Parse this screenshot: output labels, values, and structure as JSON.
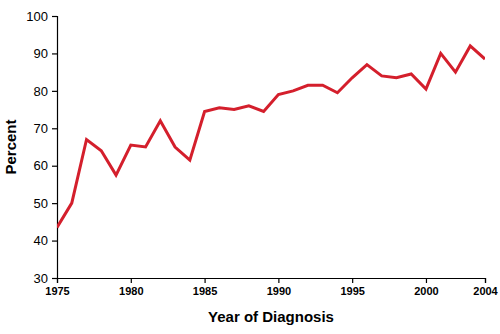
{
  "chart_data": {
    "type": "line",
    "x_label": "Year of Diagnosis",
    "y_label": "Percent",
    "x": [
      1975,
      1976,
      1977,
      1978,
      1979,
      1980,
      1981,
      1982,
      1983,
      1984,
      1985,
      1986,
      1987,
      1988,
      1989,
      1990,
      1991,
      1992,
      1993,
      1994,
      1995,
      1996,
      1997,
      1998,
      1999,
      2000,
      2001,
      2002,
      2003,
      2004
    ],
    "values": [
      43.5,
      50,
      67,
      64,
      57.5,
      65.5,
      65,
      72,
      65,
      61.5,
      74.5,
      75.5,
      75,
      76,
      74.5,
      79,
      80,
      81.5,
      81.5,
      79.5,
      83.5,
      87,
      84,
      83.5,
      84.5,
      80.5,
      90,
      85,
      92,
      88.5
    ],
    "color": "#d41f2c",
    "xlim": [
      1975,
      2004
    ],
    "xticks": [
      1975,
      1980,
      1985,
      1990,
      1995,
      2000,
      2004
    ],
    "ylim": [
      30,
      100
    ],
    "yticks": [
      30,
      40,
      50,
      60,
      70,
      80,
      90,
      100
    ],
    "grid": false
  }
}
